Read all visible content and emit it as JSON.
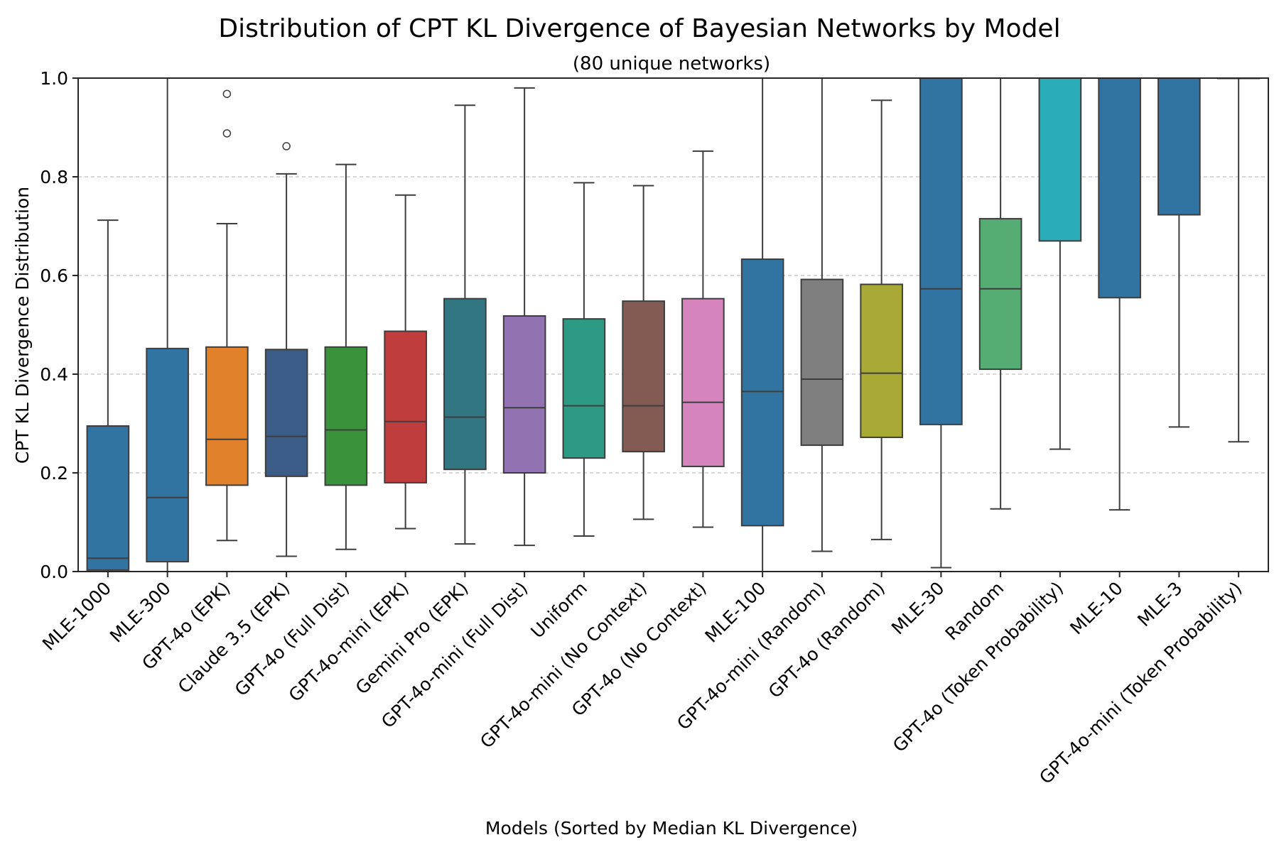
{
  "chart_data": {
    "type": "box",
    "title": "Distribution of CPT KL Divergence of Bayesian Networks by Model",
    "subtitle": "(80 unique networks)",
    "xlabel": "Models (Sorted by Median KL Divergence)",
    "ylabel": "CPT KL Divergence Distribution",
    "ylim": [
      0.0,
      1.0
    ],
    "yticks": [
      "0.0",
      "0.2",
      "0.4",
      "0.6",
      "0.8",
      "1.0"
    ],
    "grid": "horizontal-dashed",
    "boxes": [
      {
        "label": "MLE-1000",
        "color": "#3274a1",
        "q1": 0.003,
        "median": 0.027,
        "q3": 0.295,
        "whislo": 0.0,
        "whishi": 0.712,
        "outliers": []
      },
      {
        "label": "MLE-300",
        "color": "#3274a1",
        "q1": 0.02,
        "median": 0.15,
        "q3": 0.452,
        "whislo": 0.0,
        "whishi": 1.0,
        "outliers": []
      },
      {
        "label": "GPT-4o (EPK)",
        "color": "#e1812c",
        "q1": 0.175,
        "median": 0.268,
        "q3": 0.455,
        "whislo": 0.063,
        "whishi": 0.705,
        "outliers": [
          0.888,
          0.968
        ]
      },
      {
        "label": "Claude 3.5 (EPK)",
        "color": "#3a5c86",
        "q1": 0.193,
        "median": 0.274,
        "q3": 0.45,
        "whislo": 0.031,
        "whishi": 0.806,
        "outliers": [
          0.862
        ]
      },
      {
        "label": "GPT-4o (Full Dist)",
        "color": "#3a923a",
        "q1": 0.175,
        "median": 0.287,
        "q3": 0.455,
        "whislo": 0.045,
        "whishi": 0.825,
        "outliers": []
      },
      {
        "label": "GPT-4o-mini (EPK)",
        "color": "#c03d3e",
        "q1": 0.18,
        "median": 0.304,
        "q3": 0.487,
        "whislo": 0.087,
        "whishi": 0.763,
        "outliers": []
      },
      {
        "label": "Gemini Pro (EPK)",
        "color": "#327682",
        "q1": 0.207,
        "median": 0.313,
        "q3": 0.553,
        "whislo": 0.056,
        "whishi": 0.945,
        "outliers": []
      },
      {
        "label": "GPT-4o-mini (Full Dist)",
        "color": "#9372b2",
        "q1": 0.2,
        "median": 0.332,
        "q3": 0.518,
        "whislo": 0.053,
        "whishi": 0.98,
        "outliers": []
      },
      {
        "label": "Uniform",
        "color": "#2d9a83",
        "q1": 0.23,
        "median": 0.336,
        "q3": 0.512,
        "whislo": 0.072,
        "whishi": 0.788,
        "outliers": []
      },
      {
        "label": "GPT-4o-mini (No Context)",
        "color": "#845b53",
        "q1": 0.243,
        "median": 0.336,
        "q3": 0.548,
        "whislo": 0.106,
        "whishi": 0.782,
        "outliers": []
      },
      {
        "label": "GPT-4o (No Context)",
        "color": "#d684bd",
        "q1": 0.213,
        "median": 0.343,
        "q3": 0.553,
        "whislo": 0.09,
        "whishi": 0.852,
        "outliers": []
      },
      {
        "label": "MLE-100",
        "color": "#3274a1",
        "q1": 0.093,
        "median": 0.365,
        "q3": 0.633,
        "whislo": 0.0,
        "whishi": 1.0,
        "outliers": []
      },
      {
        "label": "GPT-4o-mini (Random)",
        "color": "#7f7f7f",
        "q1": 0.256,
        "median": 0.39,
        "q3": 0.592,
        "whislo": 0.041,
        "whishi": 1.0,
        "outliers": []
      },
      {
        "label": "GPT-4o (Random)",
        "color": "#a9aa35",
        "q1": 0.272,
        "median": 0.402,
        "q3": 0.582,
        "whislo": 0.065,
        "whishi": 0.955,
        "outliers": []
      },
      {
        "label": "MLE-30",
        "color": "#3274a1",
        "q1": 0.298,
        "median": 0.573,
        "q3": 1.0,
        "whislo": 0.008,
        "whishi": 1.0,
        "outliers": []
      },
      {
        "label": "Random",
        "color": "#56ad74",
        "q1": 0.41,
        "median": 0.573,
        "q3": 0.715,
        "whislo": 0.127,
        "whishi": 1.0,
        "outliers": []
      },
      {
        "label": "GPT-4o (Token Probability)",
        "color": "#2aacb9",
        "q1": 0.67,
        "median": 1.0,
        "q3": 1.0,
        "whislo": 0.248,
        "whishi": 1.0,
        "outliers": []
      },
      {
        "label": "MLE-10",
        "color": "#3274a1",
        "q1": 0.555,
        "median": 1.0,
        "q3": 1.0,
        "whislo": 0.125,
        "whishi": 1.0,
        "outliers": []
      },
      {
        "label": "MLE-3",
        "color": "#3274a1",
        "q1": 0.723,
        "median": 1.0,
        "q3": 1.0,
        "whislo": 0.293,
        "whishi": 1.0,
        "outliers": []
      },
      {
        "label": "GPT-4o-mini (Token Probability)",
        "color": "#3274a1",
        "q1": 1.0,
        "median": 1.0,
        "q3": 1.0,
        "whislo": 0.263,
        "whishi": 1.0,
        "outliers": []
      }
    ]
  }
}
